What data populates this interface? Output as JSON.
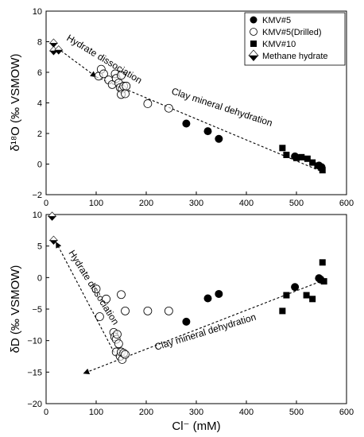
{
  "chart_data": [
    {
      "type": "scatter",
      "xlabel": "",
      "ylabel": "δ¹⁸O (‰ VSMOW)",
      "xlim": [
        0,
        600
      ],
      "ylim": [
        -2,
        10
      ],
      "xticks": [
        0,
        100,
        200,
        300,
        400,
        500,
        600
      ],
      "yticks": [
        -2,
        0,
        2,
        4,
        6,
        8,
        10
      ],
      "xtick_labels": [
        "0",
        "100",
        "200",
        "300",
        "400",
        "500",
        "600"
      ],
      "ytick_labels": [
        "−2",
        "0",
        "2",
        "4",
        "6",
        "8",
        "10"
      ],
      "legend_position": "top-right",
      "series": [
        {
          "name": "KMV#5",
          "marker": "filled-circle",
          "points": [
            [
              280,
              2.65
            ],
            [
              323,
              2.15
            ],
            [
              345,
              1.65
            ],
            [
              497,
              0.5
            ],
            [
              545,
              -0.1
            ],
            [
              550,
              -0.2
            ]
          ]
        },
        {
          "name": "KMV#5(Drilled)",
          "marker": "open-circle",
          "points": [
            [
              105,
              5.75
            ],
            [
              110,
              6.2
            ],
            [
              115,
              5.9
            ],
            [
              125,
              5.5
            ],
            [
              132,
              5.2
            ],
            [
              138,
              5.9
            ],
            [
              140,
              5.6
            ],
            [
              145,
              5.3
            ],
            [
              148,
              5.0
            ],
            [
              150,
              5.8
            ],
            [
              152,
              4.9
            ],
            [
              155,
              5.1
            ],
            [
              150,
              4.55
            ],
            [
              158,
              4.6
            ],
            [
              160,
              5.1
            ],
            [
              203,
              3.95
            ],
            [
              245,
              3.65
            ]
          ]
        },
        {
          "name": "KMV#10",
          "marker": "filled-square",
          "points": [
            [
              472,
              1.05
            ],
            [
              480,
              0.6
            ],
            [
              500,
              0.4
            ],
            [
              510,
              0.45
            ],
            [
              522,
              0.35
            ],
            [
              532,
              0.1
            ],
            [
              542,
              -0.1
            ],
            [
              552,
              -0.4
            ]
          ]
        },
        {
          "name": "Methane hydrate",
          "marker": "half-diamond",
          "points": [
            [
              15,
              7.9
            ],
            [
              15,
              7.4
            ],
            [
              25,
              7.45
            ]
          ]
        }
      ],
      "annotations": [
        {
          "text": "Hydrate dissociation"
        },
        {
          "text": "Clay mineral dehydration"
        }
      ]
    },
    {
      "type": "scatter",
      "xlabel": "Cl⁻ (mM)",
      "ylabel": "δD (‰ VSMOW)",
      "xlim": [
        0,
        600
      ],
      "ylim": [
        -20,
        10
      ],
      "xticks": [
        0,
        100,
        200,
        300,
        400,
        500,
        600
      ],
      "yticks": [
        -20,
        -15,
        -10,
        -5,
        0,
        5,
        10
      ],
      "xtick_labels": [
        "0",
        "100",
        "200",
        "300",
        "400",
        "500",
        "600"
      ],
      "ytick_labels": [
        "−20",
        "−15",
        "−10",
        "−5",
        "0",
        "5",
        "10"
      ],
      "series": [
        {
          "name": "KMV#5",
          "marker": "filled-circle",
          "points": [
            [
              280,
              -7.0
            ],
            [
              323,
              -3.3
            ],
            [
              345,
              -2.6
            ],
            [
              497,
              -1.5
            ],
            [
              545,
              -0.1
            ],
            [
              548,
              -0.3
            ]
          ]
        },
        {
          "name": "KMV#5(Drilled)",
          "marker": "open-circle",
          "points": [
            [
              100,
              -1.8
            ],
            [
              107,
              -6.2
            ],
            [
              120,
              -3.4
            ],
            [
              135,
              -8.7
            ],
            [
              137,
              -9.4
            ],
            [
              140,
              -9.8
            ],
            [
              142,
              -9.0
            ],
            [
              145,
              -10.5
            ],
            [
              140,
              -11.8
            ],
            [
              148,
              -12.5
            ],
            [
              150,
              -11.8
            ],
            [
              152,
              -13.0
            ],
            [
              155,
              -12.0
            ],
            [
              158,
              -12.2
            ],
            [
              150,
              -2.7
            ],
            [
              158,
              -5.3
            ],
            [
              203,
              -5.3
            ],
            [
              245,
              -5.3
            ]
          ]
        },
        {
          "name": "KMV#10",
          "marker": "filled-square",
          "points": [
            [
              472,
              -5.3
            ],
            [
              480,
              -2.8
            ],
            [
              520,
              -2.8
            ],
            [
              532,
              -3.4
            ],
            [
              552,
              2.4
            ],
            [
              555,
              -0.6
            ]
          ]
        },
        {
          "name": "Methane hydrate",
          "marker": "half-diamond",
          "points": [
            [
              12,
              9.7
            ],
            [
              15,
              5.9
            ]
          ]
        }
      ],
      "annotations": [
        {
          "text": "Hydrate dissociation"
        },
        {
          "text": "Clay mineral dehydration"
        }
      ]
    }
  ]
}
